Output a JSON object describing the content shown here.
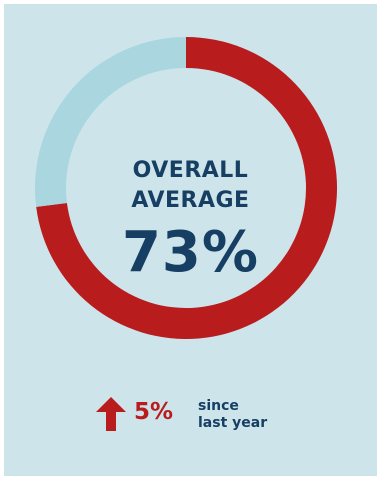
{
  "chart_data": {
    "type": "pie",
    "title": "",
    "categories": [
      "",
      ""
    ],
    "values": [
      73,
      27
    ],
    "colors": [
      "#b81c1c",
      "#a9d6df"
    ],
    "center_label_line1": "OVERALL",
    "center_label_line2": "AVERAGE",
    "center_value": "73%"
  },
  "change": {
    "direction": "up",
    "icon": "arrow-up-icon",
    "value": "5%",
    "caption_line1": "since",
    "caption_line2": "last year",
    "color": "#b81c1c"
  },
  "colors": {
    "background": "#cde4ea",
    "text": "#163f63"
  }
}
